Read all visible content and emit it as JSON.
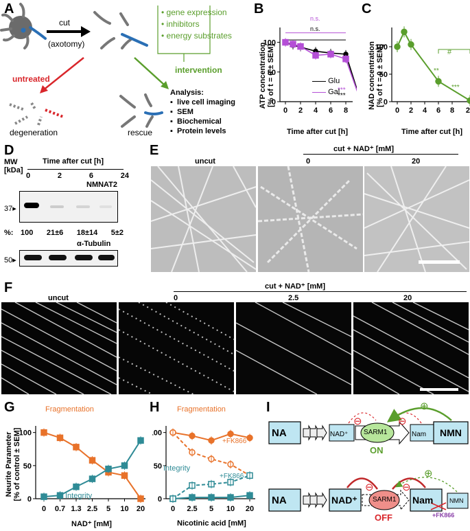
{
  "panel_labels": {
    "A": "A",
    "B": "B",
    "C": "C",
    "D": "D",
    "E": "E",
    "F": "F",
    "G": "G",
    "H": "H",
    "I": "I"
  },
  "colors": {
    "green": "#5a9e2c",
    "red": "#d9262b",
    "orange": "#e8722a",
    "teal": "#2f8b96",
    "purple": "#b44fd6",
    "black": "#000000",
    "blue_box": "#bfe6f2"
  },
  "panelA": {
    "cut_label": "cut",
    "axotomy_label": "(axotomy)",
    "interventions": [
      "gene expression",
      "inhibitors",
      "energy substrates"
    ],
    "untreated": "untreated",
    "intervention": "intervention",
    "degeneration": "degeneration",
    "rescue": "rescue",
    "analysis_title": "Analysis:",
    "analysis_items": [
      "live cell imaging",
      "SEM",
      "Biochemical",
      "Protein levels"
    ]
  },
  "panelB": {
    "ylabel1": "ATP concentration",
    "ylabel2": "[% of t = 0 ± SEM]",
    "xlabel": "Time after cut [h]",
    "ns1": "n.s.",
    "ns2": "n.s.",
    "sig_gal": "***",
    "sig_glu": "***",
    "legend": [
      "Glu",
      "Gal"
    ]
  },
  "panelC": {
    "ylabel1": "NAD concentration",
    "ylabel2": "[% of t = 0 ± SEM]",
    "xlabel": "Time after cut [h]",
    "sig6": "**",
    "sig24": "***",
    "hash": "#"
  },
  "panelD": {
    "mw_label": "MW",
    "kda_label": "[kDa]",
    "time_label": "Time after cut [h]",
    "times": [
      "0",
      "2",
      "6",
      "24"
    ],
    "protein1": "NMNAT2",
    "marker1": "37",
    "pct_label": "%:",
    "pcts": [
      "100",
      "21±6",
      "18±14",
      "5±2"
    ],
    "protein2": "α-Tubulin",
    "marker2": "50"
  },
  "panelE": {
    "uncut": "uncut",
    "cut_label": "cut + NAD⁺ [mM]",
    "conc": [
      "0",
      "20"
    ]
  },
  "panelF": {
    "uncut": "uncut",
    "cut_label": "cut + NAD⁺ [mM]",
    "conc": [
      "0",
      "2.5",
      "20"
    ]
  },
  "panelG": {
    "ylabel1": "Neurite Parameter",
    "ylabel2": "[% of control ± SEM]",
    "xlabel": "NAD⁺ [mM]",
    "frag_label": "Fragmentation",
    "integ_label": "Integrity"
  },
  "panelH": {
    "xlabel": "Nicotinic acid [mM]",
    "frag_label": "Fragmentation",
    "integ_label": "Integrity",
    "fk_frag": "+FK866",
    "fk_integ": "+FK866"
  },
  "panelI": {
    "top": {
      "na": "NA",
      "nad": "NAD⁺",
      "sarm1": "SARM1",
      "nam": "Nam",
      "nmn": "NMN",
      "status": "ON",
      "minus1": "⊖",
      "minus2": "⊖",
      "plus": "⊕"
    },
    "bottom": {
      "na": "NA",
      "nad": "NAD⁺",
      "sarm1": "SARM1",
      "nam": "Nam",
      "nmn": "NMN",
      "status": "OFF",
      "fk866": "+FK866",
      "minus1": "⊖",
      "minus2": "⊖",
      "plus": "⊕"
    }
  },
  "chart_data": [
    {
      "panel": "B",
      "type": "line",
      "x": [
        0,
        1,
        2,
        4,
        6,
        8,
        24
      ],
      "xticks": [
        "0",
        "2",
        "4",
        "6",
        "8",
        "24"
      ],
      "series": [
        {
          "name": "Glu",
          "values": [
            100,
            95,
            92,
            85,
            82,
            80,
            0
          ],
          "color": "#000000"
        },
        {
          "name": "Gal",
          "values": [
            100,
            97,
            93,
            78,
            80,
            72,
            0
          ],
          "color": "#b44fd6"
        }
      ],
      "xlabel": "Time after cut [h]",
      "ylabel": "ATP concentration [% of t = 0 ± SEM]",
      "ylim": [
        0,
        125
      ],
      "yticks": [
        0,
        50,
        100
      ]
    },
    {
      "panel": "C",
      "type": "line",
      "x": [
        0,
        1,
        2,
        6,
        24
      ],
      "xticks": [
        "0",
        "2",
        "4",
        "6",
        "8",
        "24"
      ],
      "series": [
        {
          "name": "",
          "values": [
            100,
            127,
            104,
            37,
            2
          ],
          "color": "#5a9e2c"
        }
      ],
      "xlabel": "Time after cut [h]",
      "ylabel": "NAD concentration [% of t = 0 ± SEM]",
      "ylim": [
        0,
        135
      ],
      "yticks": [
        0,
        50,
        100
      ]
    },
    {
      "panel": "G",
      "type": "line",
      "categories": [
        "0",
        "0.7",
        "1.3",
        "2.5",
        "5",
        "10",
        "20"
      ],
      "series": [
        {
          "name": "Fragmentation",
          "values": [
            100,
            92,
            78,
            58,
            40,
            35,
            0
          ],
          "color": "#e8722a"
        },
        {
          "name": "Integrity",
          "values": [
            3,
            5,
            18,
            30,
            45,
            50,
            88
          ],
          "color": "#2f8b96"
        }
      ],
      "xlabel": "NAD⁺ [mM]",
      "ylabel": "Neurite Parameter [% of control ± SEM]",
      "ylim": [
        0,
        110
      ],
      "yticks": [
        0,
        50,
        100
      ]
    },
    {
      "panel": "H",
      "type": "line",
      "categories": [
        "0",
        "2.5",
        "5",
        "10",
        "20"
      ],
      "series": [
        {
          "name": "Fragmentation",
          "values": [
            100,
            95,
            88,
            98,
            92
          ],
          "color": "#e8722a"
        },
        {
          "name": "Fragmentation +FK866",
          "values": [
            100,
            70,
            60,
            52,
            35
          ],
          "color": "#e8722a"
        },
        {
          "name": "Integrity",
          "values": [
            0,
            2,
            2,
            2,
            5
          ],
          "color": "#2f8b96"
        },
        {
          "name": "Integrity +FK866",
          "values": [
            0,
            20,
            22,
            25,
            35
          ],
          "color": "#2f8b96"
        }
      ],
      "xlabel": "Nicotinic acid [mM]",
      "ylim": [
        0,
        110
      ],
      "yticks": [
        0,
        50,
        100
      ]
    }
  ]
}
